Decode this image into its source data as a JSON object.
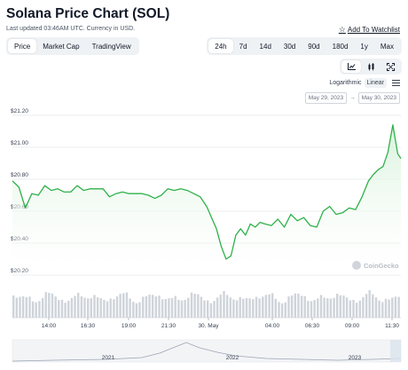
{
  "header": {
    "title": "Solana Price Chart (SOL)",
    "updated": "Last updated 03:46AM UTC. Currency in USD.",
    "watchlist": "Add To Watchlist"
  },
  "view_tabs": [
    "Price",
    "Market Cap",
    "TradingView"
  ],
  "range_tabs": [
    "24h",
    "7d",
    "14d",
    "30d",
    "90d",
    "180d",
    "1y",
    "Max"
  ],
  "chart_type_icons": [
    "line-chart-icon",
    "candlestick-icon",
    "expand-icon"
  ],
  "scale": {
    "log": "Logarithmic",
    "linear": "Linear"
  },
  "date_range": {
    "from": "May 29, 2023",
    "arrow": "→",
    "to": "May 30, 2023"
  },
  "watermark": "CoinGecko",
  "colors": {
    "line": "#2fb14a",
    "fill": "#d9f2dc",
    "volume": "#cfd4da",
    "active_bg": "#ffffff",
    "seg_bg": "#eff2f5"
  },
  "chart_data": {
    "type": "area",
    "title": "",
    "xlabel": "",
    "ylabel": "",
    "ylim": [
      20.2,
      21.2
    ],
    "y_ticks": [
      "$21.20",
      "$21.00",
      "$20.80",
      "$20.60",
      "$20.40",
      "$20.20"
    ],
    "x_ticks": [
      "14:00",
      "16:30",
      "19:00",
      "21:30",
      "30. May",
      "04:00",
      "06:30",
      "09:00",
      "11:30"
    ],
    "x_range_hours": [
      0,
      24
    ],
    "series": [
      {
        "x_hours": [
          0,
          0.4,
          0.8,
          1.2,
          1.6,
          2.0,
          2.4,
          2.8,
          3.2,
          3.6,
          4.0,
          4.4,
          4.8,
          5.2,
          5.6,
          6.0,
          6.4,
          6.8,
          7.2,
          7.6,
          8.0,
          8.4,
          8.8,
          9.2,
          9.6,
          10.0,
          10.4,
          10.8,
          11.2,
          11.6,
          12.0,
          12.3,
          12.6,
          12.9,
          13.2,
          13.5,
          13.8,
          14.1,
          14.4,
          14.7,
          15.0,
          15.3,
          15.6,
          16.0,
          16.4,
          16.8,
          17.2,
          17.6,
          18.0,
          18.4,
          18.8,
          19.2,
          19.6,
          20.0,
          20.4,
          20.8,
          21.2,
          21.6,
          22.0,
          22.3,
          22.6,
          22.9,
          23.2,
          23.5,
          23.8,
          24.0
        ],
        "values": [
          20.79,
          20.75,
          20.62,
          20.71,
          20.7,
          20.76,
          20.73,
          20.74,
          20.72,
          20.72,
          20.76,
          20.73,
          20.74,
          20.74,
          20.74,
          20.69,
          20.71,
          20.72,
          20.71,
          20.71,
          20.71,
          20.7,
          20.68,
          20.7,
          20.74,
          20.73,
          20.74,
          20.73,
          20.71,
          20.69,
          20.63,
          20.56,
          20.49,
          20.38,
          20.3,
          20.32,
          20.45,
          20.49,
          20.45,
          20.52,
          20.5,
          20.53,
          20.52,
          20.51,
          20.55,
          20.5,
          20.58,
          20.54,
          20.56,
          20.51,
          20.5,
          20.6,
          20.63,
          20.58,
          20.59,
          20.62,
          20.61,
          20.69,
          20.79,
          20.83,
          20.86,
          20.88,
          20.97,
          21.14,
          20.96,
          20.93
        ]
      }
    ],
    "volume_note": "volume bars shown below price, unlabeled",
    "navigator_x_ticks": [
      "2021",
      "2022",
      "2023"
    ],
    "grid": true,
    "legend": "none"
  }
}
